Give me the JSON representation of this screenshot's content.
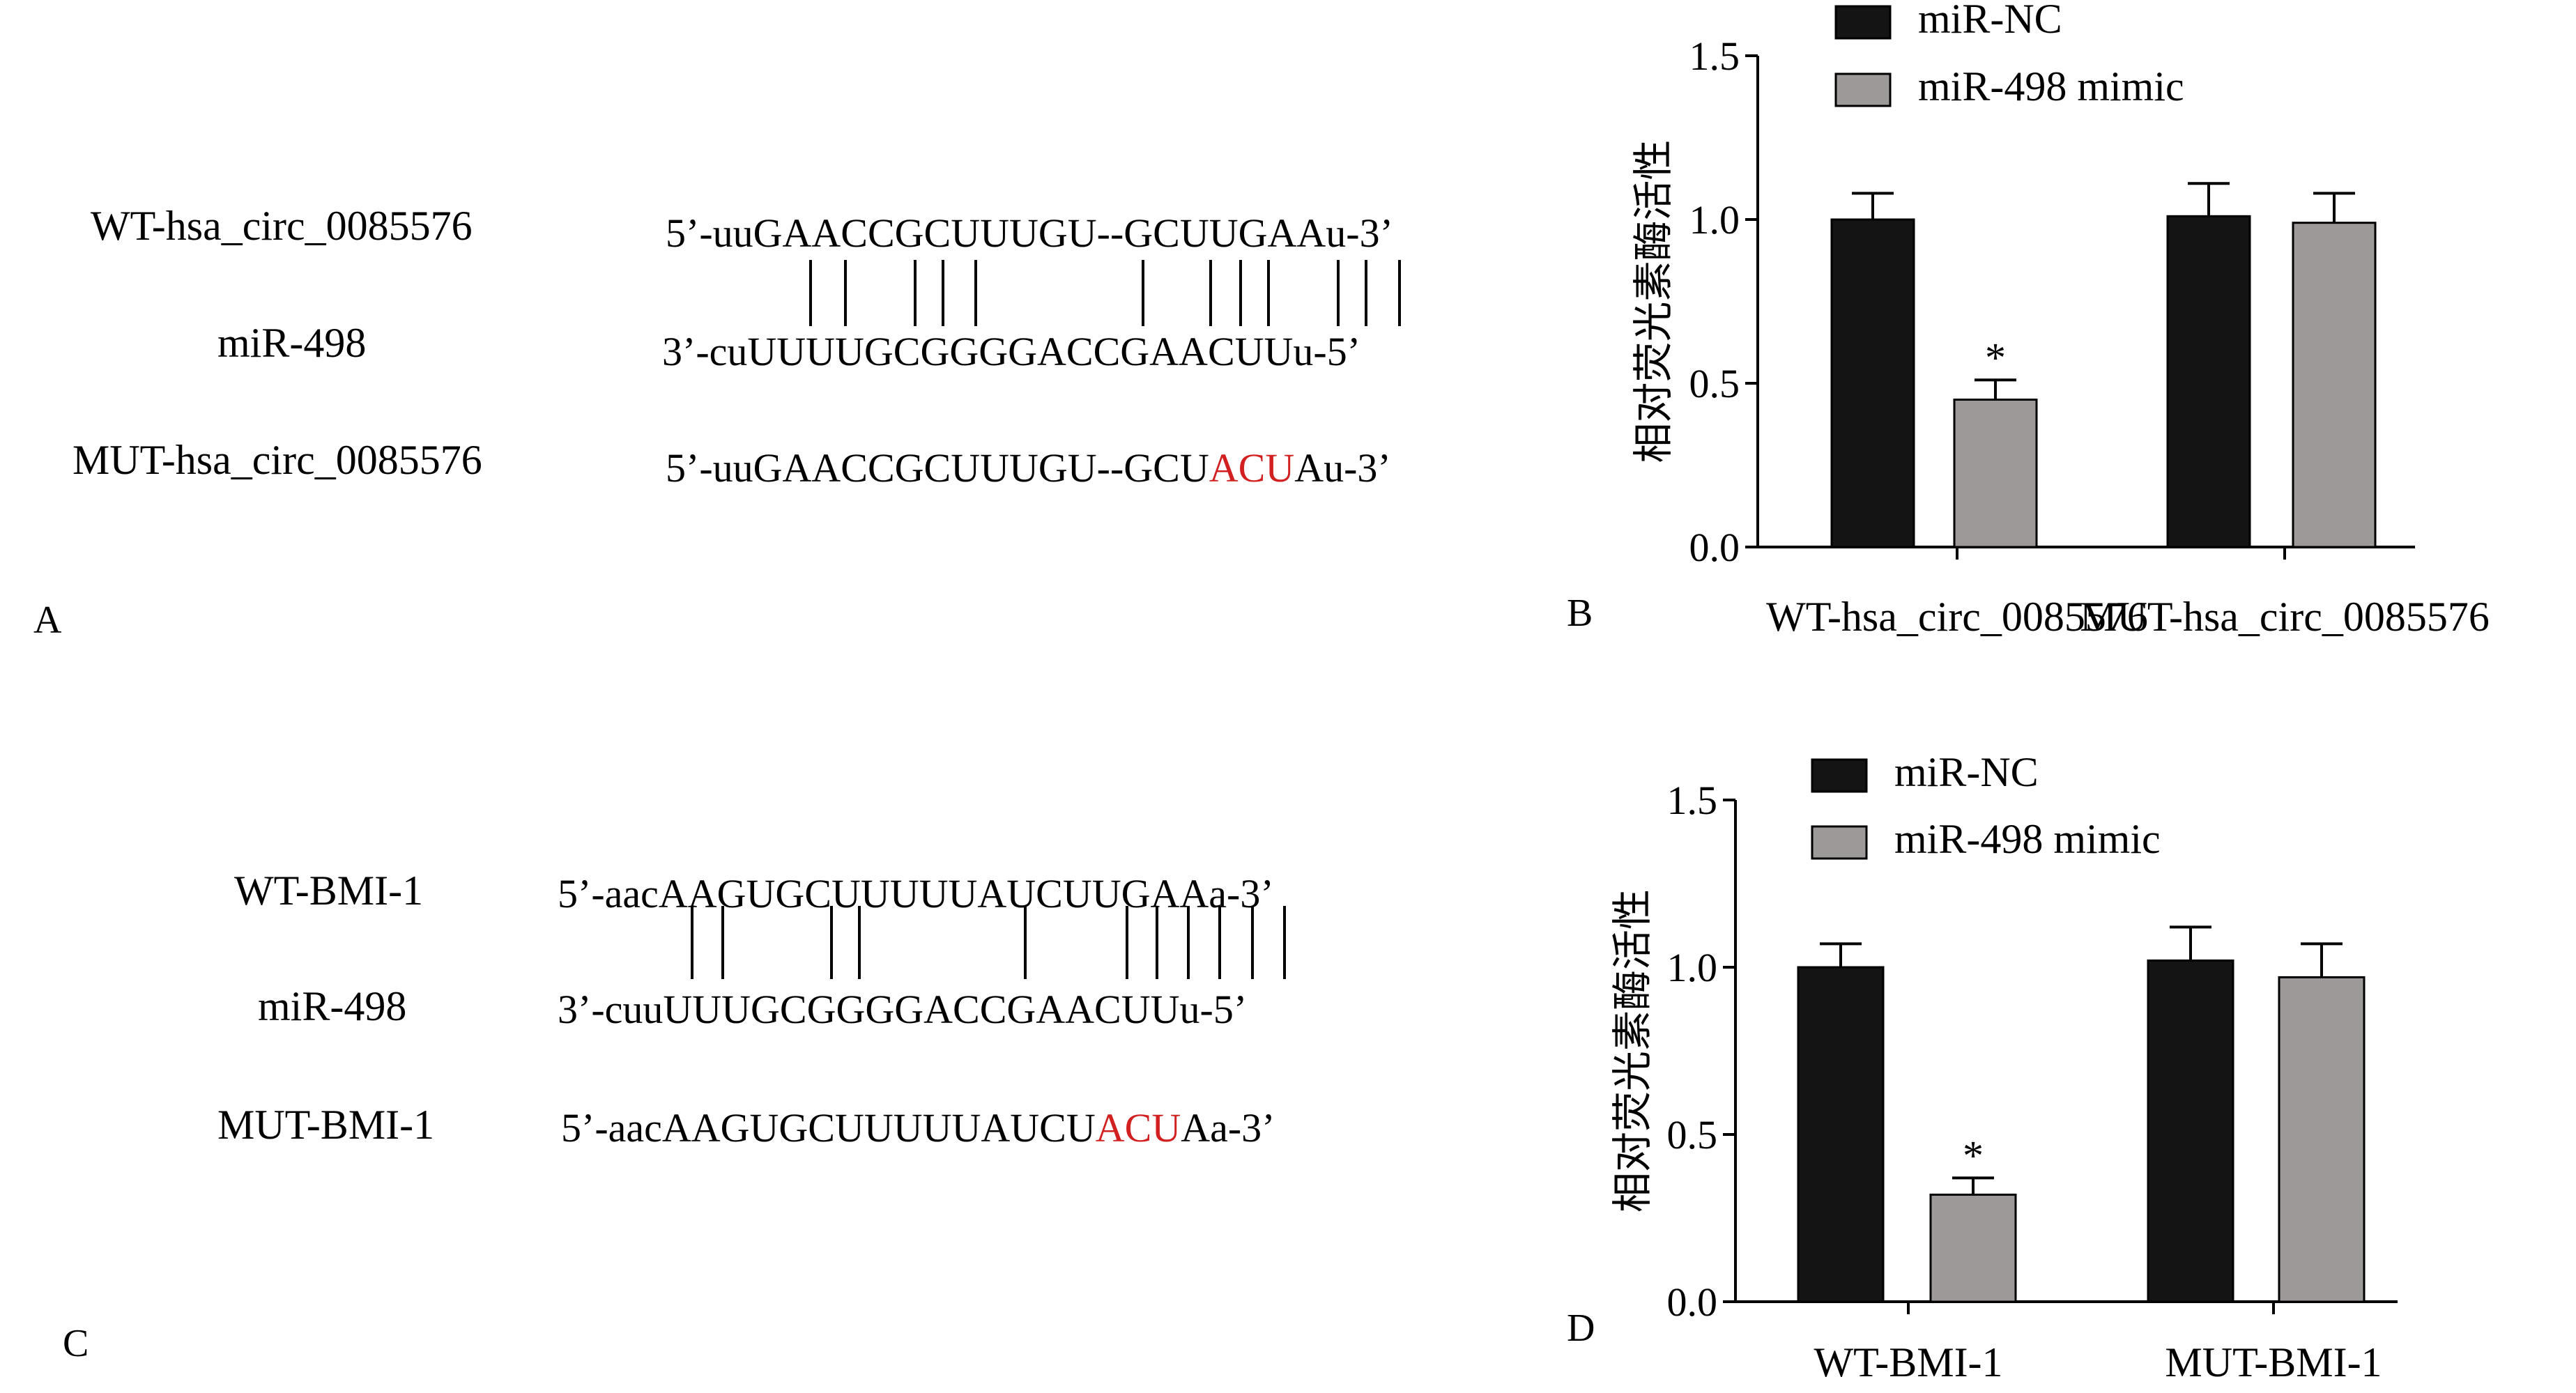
{
  "panel_letters": [
    "A",
    "B",
    "C",
    "D"
  ],
  "palette": {
    "nc": "#141414",
    "mimic": "#9e9999",
    "mutation": "#d21f1f"
  },
  "panel_a": {
    "rows": [
      {
        "label": "WT-hsa_circ_0085576",
        "seq": [
          "5’-uuGAACCGCUUUGU--GCUUGAAu-3’"
        ]
      },
      {
        "label": "miR-498",
        "seq": [
          "3’-cuUUUUGCGGGGACCGAACUUu-5’"
        ]
      },
      {
        "label": "MUT-hsa_circ_0085576",
        "seq": [
          "5’-uuGAACCGCUUUGU--GCU",
          "ACU",
          "Au-3’"
        ]
      }
    ]
  },
  "panel_c": {
    "rows": [
      {
        "label": "WT-BMI-1",
        "seq": [
          "5’-aacAAGUGCUUUUUAUCUUGAAa-3’"
        ]
      },
      {
        "label": "miR-498",
        "seq": [
          "3’-cuuUUUGCGGGGACCGAACUUu-5’"
        ]
      },
      {
        "label": "MUT-BMI-1",
        "seq": [
          "5’-aacAAGUGCUUUUUAUCU",
          "ACU",
          "Aa-3’"
        ]
      }
    ]
  },
  "chart_data": [
    {
      "type": "bar",
      "panel": "B",
      "categories": [
        "WT-hsa_circ_0085576",
        "MUT-hsa_circ_0085576"
      ],
      "series": [
        {
          "name": "miR-NC",
          "values": [
            1.0,
            1.01
          ],
          "errors": [
            0.08,
            0.1
          ]
        },
        {
          "name": "miR-498 mimic",
          "values": [
            0.45,
            0.99
          ],
          "errors": [
            0.06,
            0.09
          ]
        }
      ],
      "significance": [
        "",
        "*",
        "",
        ""
      ],
      "ylabel": "相对荧光素酶活性",
      "ylim": [
        0,
        1.5
      ],
      "yticks": [
        "0.0",
        "0.5",
        "1.0",
        "1.5"
      ],
      "legend": "top"
    },
    {
      "type": "bar",
      "panel": "D",
      "categories": [
        "WT-BMI-1",
        "MUT-BMI-1"
      ],
      "series": [
        {
          "name": "miR-NC",
          "values": [
            1.0,
            1.02
          ],
          "errors": [
            0.07,
            0.1
          ]
        },
        {
          "name": "miR-498 mimic",
          "values": [
            0.32,
            0.97
          ],
          "errors": [
            0.05,
            0.1
          ]
        }
      ],
      "significance": [
        "",
        "*",
        "",
        ""
      ],
      "ylabel": "相对荧光素酶活性",
      "ylim": [
        0,
        1.5
      ],
      "yticks": [
        "0.0",
        "0.5",
        "1.0",
        "1.5"
      ],
      "legend": "top"
    }
  ]
}
